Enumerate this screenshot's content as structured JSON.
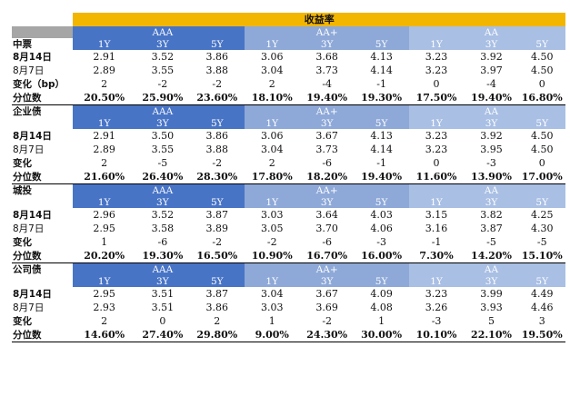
{
  "title": "收益率",
  "rating_groups": [
    "AAA",
    "AA+",
    "AA"
  ],
  "tenors": [
    "1Y",
    "3Y",
    "5Y"
  ],
  "sections": [
    {
      "name": "中票",
      "rows": [
        {
          "label": "8月14日",
          "values": [
            "2.91",
            "3.52",
            "3.86",
            "3.06",
            "3.68",
            "4.13",
            "3.23",
            "3.92",
            "4.50"
          ]
        },
        {
          "label": "8月7日",
          "values": [
            "2.89",
            "3.55",
            "3.88",
            "3.04",
            "3.73",
            "4.14",
            "3.23",
            "3.97",
            "4.50"
          ]
        },
        {
          "label": "变化（bp）",
          "values": [
            "2",
            "-2",
            "-2",
            "2",
            "-4",
            "-1",
            "0",
            "-4",
            "0"
          ]
        },
        {
          "label": "分位数",
          "values": [
            "20.50%",
            "25.90%",
            "23.60%",
            "18.10%",
            "19.40%",
            "19.30%",
            "17.50%",
            "19.40%",
            "16.80%"
          ]
        }
      ]
    },
    {
      "name": "企业债",
      "rows": [
        {
          "label": "8月14日",
          "values": [
            "2.91",
            "3.50",
            "3.86",
            "3.06",
            "3.67",
            "4.13",
            "3.23",
            "3.92",
            "4.50"
          ]
        },
        {
          "label": "8月7日",
          "values": [
            "2.89",
            "3.55",
            "3.88",
            "3.04",
            "3.73",
            "4.14",
            "3.23",
            "3.95",
            "4.50"
          ]
        },
        {
          "label": "变化",
          "values": [
            "2",
            "-5",
            "-2",
            "2",
            "-6",
            "-1",
            "0",
            "-3",
            "0"
          ]
        },
        {
          "label": "分位数",
          "values": [
            "21.60%",
            "26.40%",
            "28.30%",
            "17.80%",
            "18.20%",
            "19.40%",
            "11.60%",
            "13.90%",
            "17.00%"
          ]
        }
      ]
    },
    {
      "name": "城投",
      "rows": [
        {
          "label": "8月14日",
          "values": [
            "2.96",
            "3.52",
            "3.87",
            "3.03",
            "3.64",
            "4.03",
            "3.15",
            "3.82",
            "4.25"
          ]
        },
        {
          "label": "8月7日",
          "values": [
            "2.95",
            "3.58",
            "3.89",
            "3.05",
            "3.70",
            "4.06",
            "3.16",
            "3.87",
            "4.30"
          ]
        },
        {
          "label": "变化",
          "values": [
            "1",
            "-6",
            "-2",
            "-2",
            "-6",
            "-3",
            "-1",
            "-5",
            "-5"
          ]
        },
        {
          "label": "分位数",
          "values": [
            "20.20%",
            "19.30%",
            "16.50%",
            "10.90%",
            "16.70%",
            "16.00%",
            "7.30%",
            "14.20%",
            "15.10%"
          ]
        }
      ]
    },
    {
      "name": "公司债",
      "rows": [
        {
          "label": "8月14日",
          "values": [
            "2.95",
            "3.51",
            "3.87",
            "3.04",
            "3.67",
            "4.09",
            "3.23",
            "3.99",
            "4.49"
          ]
        },
        {
          "label": "8月7日",
          "values": [
            "2.93",
            "3.51",
            "3.86",
            "3.03",
            "3.69",
            "4.08",
            "3.26",
            "3.93",
            "4.46"
          ]
        },
        {
          "label": "变化",
          "values": [
            "2",
            "0",
            "2",
            "1",
            "-2",
            "1",
            "-3",
            "5",
            "3"
          ]
        },
        {
          "label": "分位数",
          "values": [
            "14.60%",
            "27.40%",
            "29.80%",
            "9.00%",
            "24.30%",
            "30.00%",
            "10.10%",
            "22.10%",
            "19.50%"
          ]
        }
      ]
    }
  ],
  "colors": {
    "title_bg": "#f2b500",
    "aaa_bg": "#4874c6",
    "aa_plus_bg": "#8ea9d8",
    "aa_bg": "#a9bfe4",
    "label_header_bg": "#a6a6a6"
  }
}
